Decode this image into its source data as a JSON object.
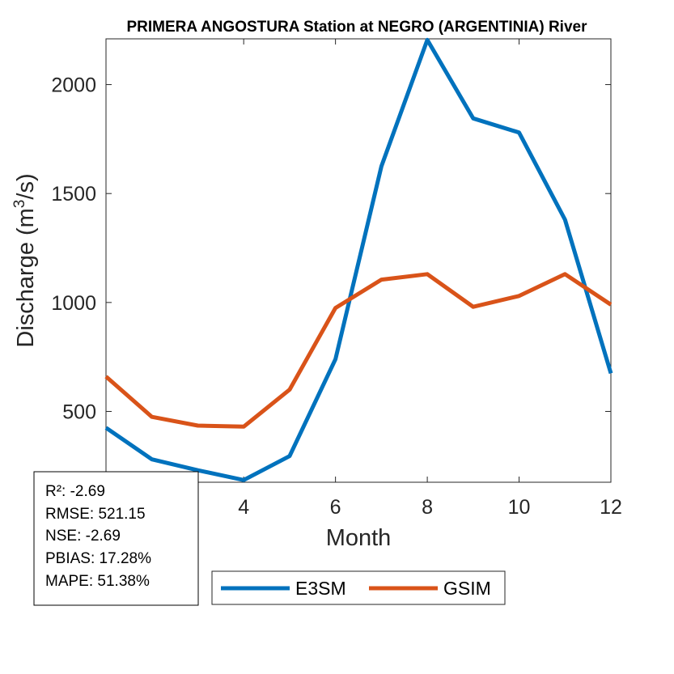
{
  "chart_data": {
    "type": "line",
    "title": "PRIMERA ANGOSTURA  Station at  NEGRO (ARGENTINIA)  River",
    "xlabel": "Month",
    "ylabel_main": "Discharge (m",
    "ylabel_sup": "3",
    "ylabel_tail": "/s)",
    "xlim": [
      1,
      12
    ],
    "ylim": [
      175,
      2210
    ],
    "xticks": [
      4,
      6,
      8,
      10,
      12
    ],
    "yticks": [
      500,
      1000,
      1500,
      2000
    ],
    "x": [
      1,
      2,
      3,
      4,
      5,
      6,
      7,
      8,
      9,
      10,
      11,
      12
    ],
    "series": [
      {
        "name": "E3SM",
        "color": "#0072BD",
        "values": [
          425,
          280,
          230,
          185,
          295,
          740,
          1625,
          2205,
          1845,
          1780,
          1380,
          675
        ]
      },
      {
        "name": "GSIM",
        "color": "#D95319",
        "values": [
          660,
          475,
          435,
          430,
          600,
          975,
          1105,
          1130,
          980,
          1030,
          1130,
          990
        ]
      }
    ],
    "legend_position": "bottom-center",
    "grid": false
  },
  "stats": [
    "R²: -2.69",
    "RMSE: 521.15",
    "NSE: -2.69",
    "PBIAS: 17.28%",
    "MAPE: 51.38%"
  ]
}
